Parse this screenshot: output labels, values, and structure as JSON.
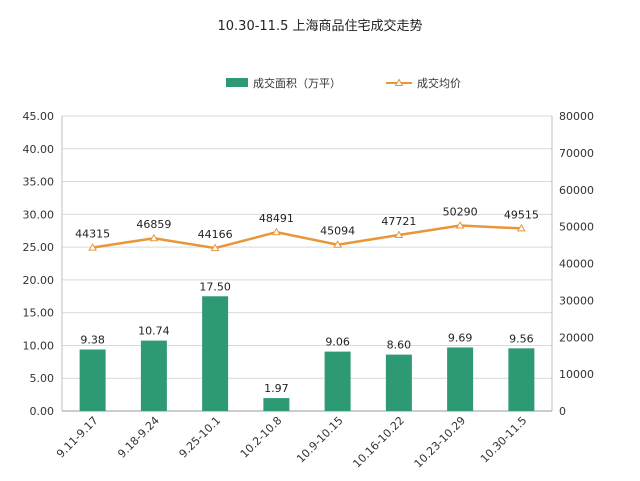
{
  "chart_data": {
    "type": "bar",
    "title": "10.30-11.5 上海商品住宅成交走势",
    "categories": [
      "9.11-9.17",
      "9.18-9.24",
      "9.25-10.1",
      "10.2-10.8",
      "10.9-10.15",
      "10.16-10.22",
      "10.23-10.29",
      "10.30-11.5"
    ],
    "series": [
      {
        "name": "成交面积（万平）",
        "type": "bar",
        "axis": "left",
        "color": "#2e9a73",
        "values": [
          9.38,
          10.74,
          17.5,
          1.97,
          9.06,
          8.6,
          9.69,
          9.56
        ],
        "labels": [
          "9.38",
          "10.74",
          "17.50",
          "1.97",
          "9.06",
          "8.60",
          "9.69",
          "9.56"
        ]
      },
      {
        "name": "成交均价",
        "type": "line",
        "axis": "right",
        "color": "#e8963a",
        "marker": "triangle",
        "values": [
          44315,
          46859,
          44166,
          48491,
          45094,
          47721,
          50290,
          49515
        ],
        "labels": [
          "44315",
          "46859",
          "44166",
          "48491",
          "45094",
          "47721",
          "50290",
          "49515"
        ]
      }
    ],
    "y_left": {
      "min": 0,
      "max": 45,
      "step": 5,
      "ticks": [
        "0.00",
        "5.00",
        "10.00",
        "15.00",
        "20.00",
        "25.00",
        "30.00",
        "35.00",
        "40.00",
        "45.00"
      ]
    },
    "y_right": {
      "min": 0,
      "max": 80000,
      "step": 10000,
      "ticks": [
        "0",
        "10000",
        "20000",
        "30000",
        "40000",
        "50000",
        "60000",
        "70000",
        "80000"
      ]
    },
    "grid": true,
    "legend": "top-center"
  }
}
